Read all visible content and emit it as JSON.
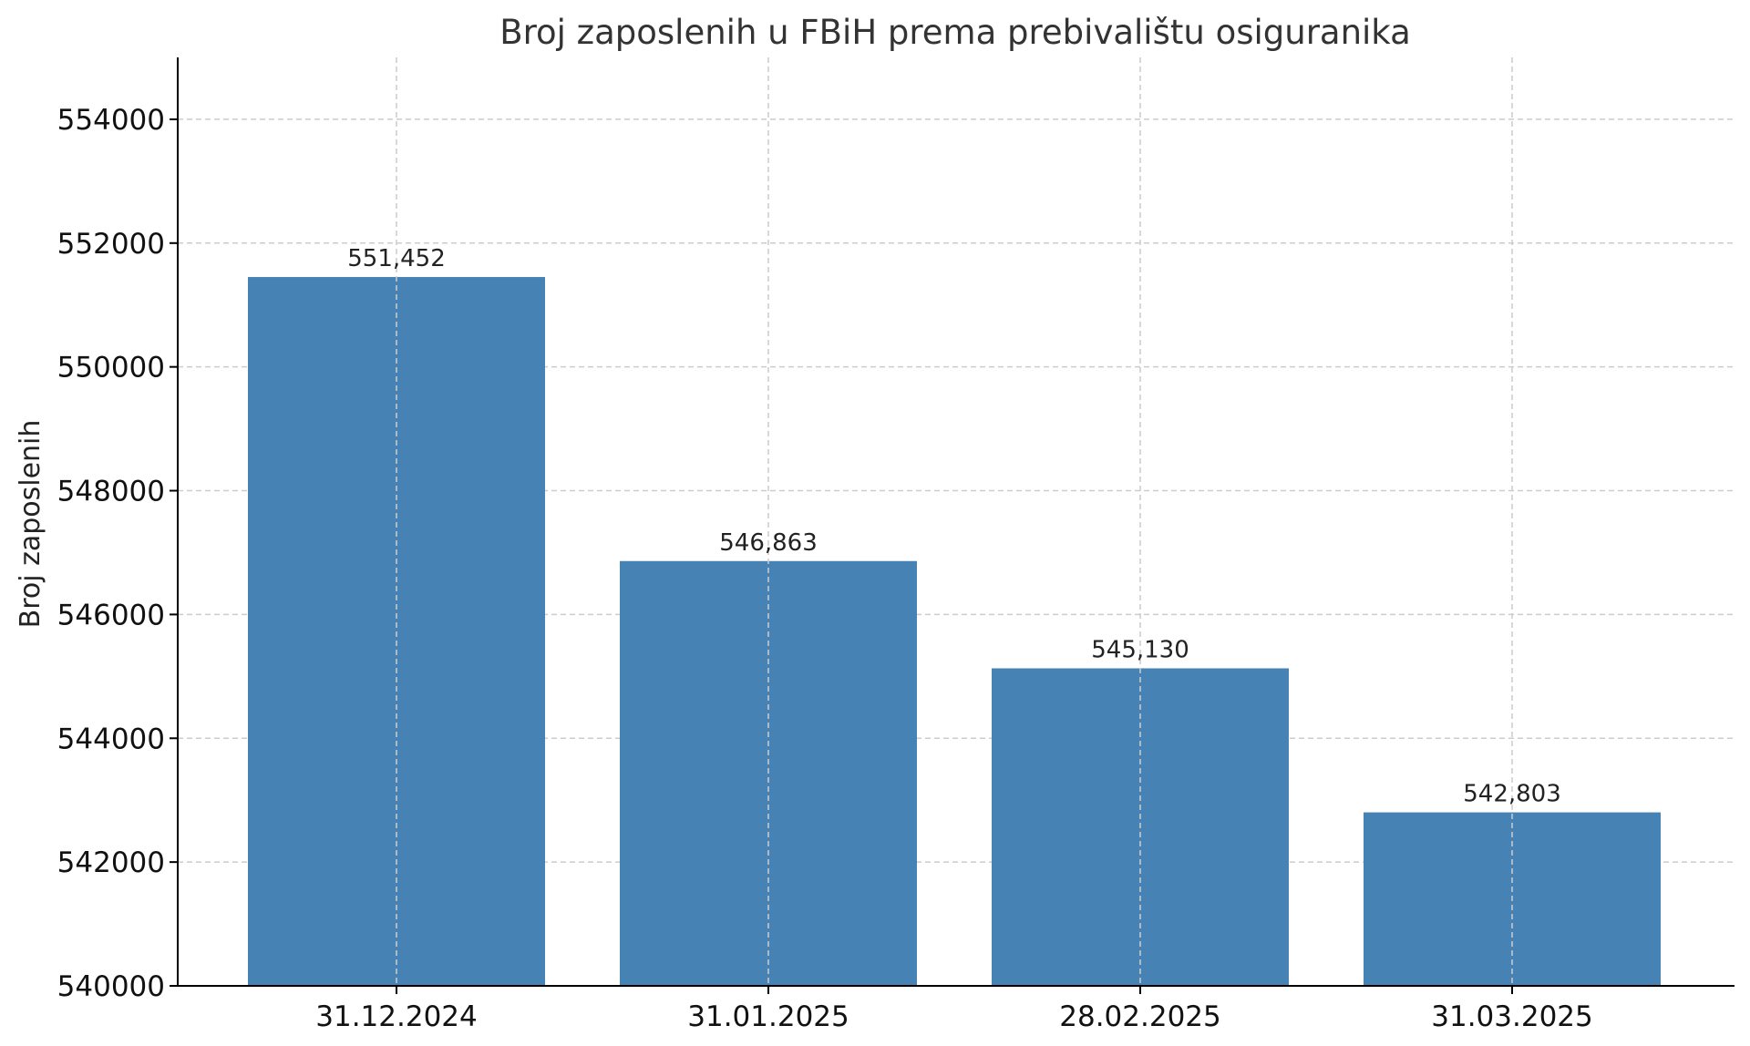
{
  "chart_data": {
    "type": "bar",
    "title": "Broj zaposlenih u FBiH prema prebivalištu osiguranika",
    "xlabel": "",
    "ylabel": "Broj zaposlenih",
    "categories": [
      "31.12.2024",
      "31.01.2025",
      "28.02.2025",
      "31.03.2025"
    ],
    "values": [
      551452,
      546863,
      545130,
      542803
    ],
    "value_labels": [
      "551,452",
      "546,863",
      "545,130",
      "542,803"
    ],
    "ylim": [
      540000,
      555000
    ],
    "yticks": [
      540000,
      542000,
      544000,
      546000,
      548000,
      550000,
      552000,
      554000
    ],
    "ytick_labels": [
      "540000",
      "542000",
      "544000",
      "546000",
      "548000",
      "550000",
      "552000",
      "554000"
    ],
    "grid": true,
    "legend": "none",
    "colors": {
      "bar": "#4682b4",
      "grid": "#cccccc",
      "axis": "#000000",
      "text": "#333333"
    }
  }
}
